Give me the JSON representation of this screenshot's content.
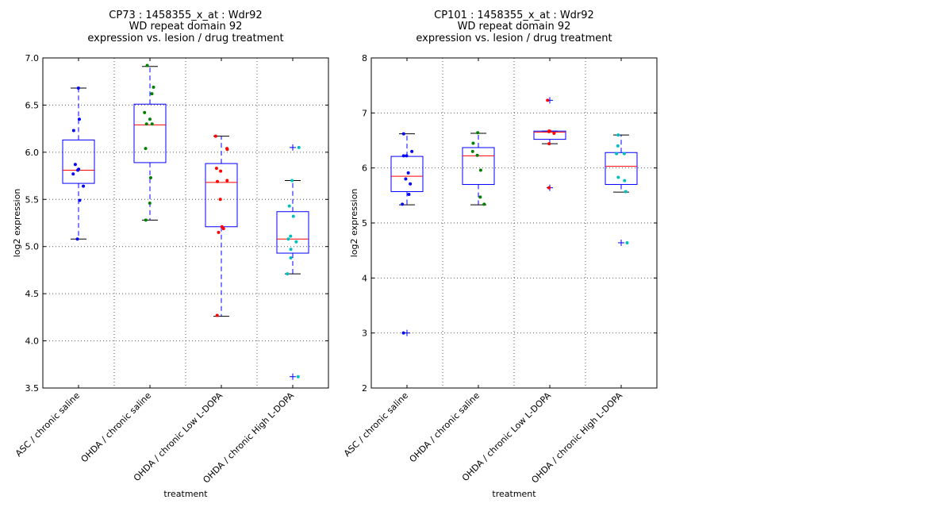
{
  "colors": {
    "box": "#0000ff",
    "median": "#ff0000",
    "whisker_cap": "#000000",
    "group_points": [
      "#0000ff",
      "#008000",
      "#ff0000",
      "#00bfbf"
    ]
  },
  "chart_data": [
    {
      "type": "boxplot",
      "title": [
        "CP73 : 1458355_x_at : Wdr92",
        "WD repeat domain 92",
        "expression vs. lesion / drug treatment"
      ],
      "xlabel": "treatment",
      "ylabel": "log2 expression",
      "ylim": [
        3.5,
        7.0
      ],
      "yticks": [
        "3.5",
        "4.0",
        "4.5",
        "5.0",
        "5.5",
        "6.0",
        "6.5",
        "7.0"
      ],
      "grid": true,
      "categories": [
        "ASC / chronic saline",
        "OHDA / chronic saline",
        "OHDA / chronic Low L-DOPA",
        "OHDA / chronic High L-DOPA"
      ],
      "boxes": [
        {
          "whisker_low": 5.08,
          "q1": 5.67,
          "median": 5.81,
          "q3": 6.13,
          "whisker_high": 6.68,
          "outliers": [],
          "points": [
            6.68,
            6.35,
            6.23,
            5.87,
            5.81,
            5.82,
            5.77,
            5.64,
            5.49,
            5.08
          ]
        },
        {
          "whisker_low": 5.28,
          "q1": 5.89,
          "median": 6.29,
          "q3": 6.51,
          "whisker_high": 6.91,
          "outliers": [],
          "points": [
            6.92,
            6.69,
            6.62,
            6.42,
            6.35,
            6.3,
            6.3,
            6.04,
            5.73,
            5.46,
            5.28
          ]
        },
        {
          "whisker_low": 4.26,
          "q1": 5.21,
          "median": 5.68,
          "q3": 5.88,
          "whisker_high": 6.17,
          "outliers": [],
          "points": [
            6.17,
            6.04,
            6.03,
            5.83,
            5.8,
            5.7,
            5.69,
            5.5,
            5.21,
            5.19,
            5.15,
            4.27
          ]
        },
        {
          "whisker_low": 4.71,
          "q1": 4.93,
          "median": 5.08,
          "q3": 5.37,
          "whisker_high": 5.7,
          "outliers": [
            6.05,
            3.62
          ],
          "points": [
            6.05,
            5.7,
            5.43,
            5.32,
            5.11,
            5.08,
            5.05,
            4.97,
            4.88,
            4.71,
            3.62
          ]
        }
      ]
    },
    {
      "type": "boxplot",
      "title": [
        "CP101 : 1458355_x_at : Wdr92",
        "WD repeat domain 92",
        "expression vs. lesion / drug treatment"
      ],
      "xlabel": "treatment",
      "ylabel": "log2 expression",
      "ylim": [
        2,
        8
      ],
      "yticks": [
        "2",
        "3",
        "4",
        "5",
        "6",
        "7",
        "8"
      ],
      "grid": true,
      "categories": [
        "ASC / chronic saline",
        "OHDA / chronic saline",
        "OHDA / chronic Low L-DOPA",
        "OHDA / chronic High L-DOPA"
      ],
      "boxes": [
        {
          "whisker_low": 5.33,
          "q1": 5.57,
          "median": 5.85,
          "q3": 6.21,
          "whisker_high": 6.62,
          "outliers": [
            3.0
          ],
          "points": [
            6.62,
            6.3,
            6.22,
            6.22,
            5.91,
            5.8,
            5.71,
            5.52,
            5.34,
            3.0
          ]
        },
        {
          "whisker_low": 5.33,
          "q1": 5.7,
          "median": 6.22,
          "q3": 6.37,
          "whisker_high": 6.63,
          "outliers": [],
          "points": [
            6.64,
            6.45,
            6.3,
            6.23,
            5.96,
            5.47,
            5.34
          ]
        },
        {
          "whisker_low": 6.44,
          "q1": 6.52,
          "median": 6.65,
          "q3": 6.67,
          "whisker_high": 6.67,
          "outliers": [
            7.23,
            5.64
          ],
          "points": [
            7.23,
            6.67,
            6.67,
            6.66,
            6.63,
            6.44,
            5.64
          ]
        },
        {
          "whisker_low": 5.56,
          "q1": 5.7,
          "median": 6.03,
          "q3": 6.28,
          "whisker_high": 6.6,
          "outliers": [
            4.64
          ],
          "points": [
            6.6,
            6.4,
            6.26,
            6.26,
            5.83,
            5.77,
            5.57,
            4.64
          ]
        }
      ]
    }
  ]
}
